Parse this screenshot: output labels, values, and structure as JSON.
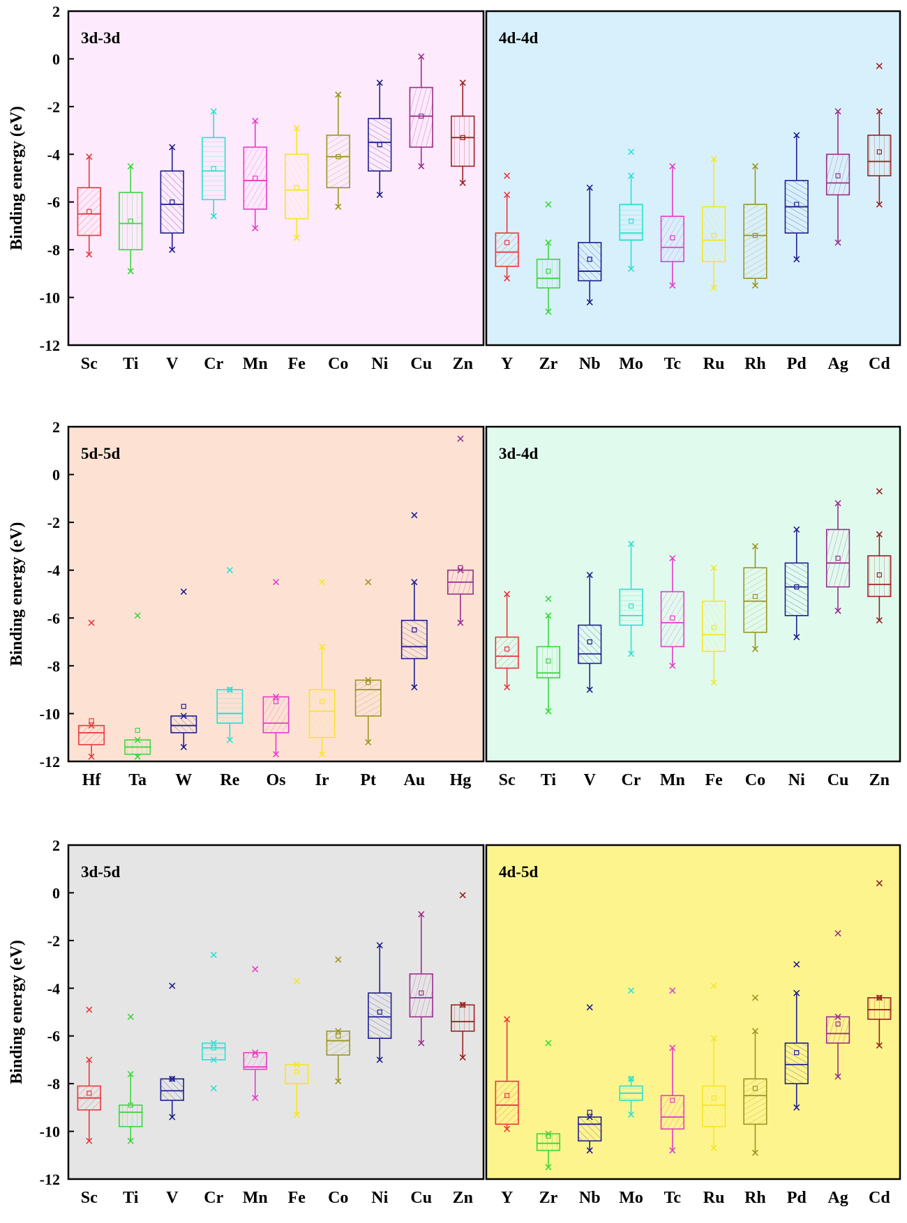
{
  "chart_data": [
    {
      "type": "box",
      "title": "3d-3d",
      "ylabel": "Binding energy (eV)",
      "ylim": [
        -12,
        2
      ],
      "yticks": [
        2,
        0,
        -2,
        -4,
        -6,
        -8,
        -10,
        -12
      ],
      "background": "#fdeafc",
      "categories": [
        "Sc",
        "Ti",
        "V",
        "Cr",
        "Mn",
        "Fe",
        "Co",
        "Ni",
        "Cu",
        "Zn"
      ],
      "colors": [
        "#e8383d",
        "#3cd63c",
        "#1e1e8c",
        "#2ee0d0",
        "#e63cc8",
        "#f5e626",
        "#9a9620",
        "#1e1e8c",
        "#9a2e8c",
        "#9a2020"
      ],
      "boxes": [
        {
          "min": -8.2,
          "q1": -7.4,
          "median": -6.5,
          "q3": -5.4,
          "max": -4.1,
          "mean": -6.4
        },
        {
          "min": -8.9,
          "q1": -8.0,
          "median": -6.9,
          "q3": -5.6,
          "max": -4.5,
          "mean": -6.8
        },
        {
          "min": -8.0,
          "q1": -7.3,
          "median": -6.1,
          "q3": -4.7,
          "max": -3.7,
          "mean": -6.0
        },
        {
          "min": -6.6,
          "q1": -5.9,
          "median": -4.7,
          "q3": -3.3,
          "max": -2.2,
          "mean": -4.6
        },
        {
          "min": -7.1,
          "q1": -6.3,
          "median": -5.1,
          "q3": -3.7,
          "max": -2.6,
          "mean": -5.0
        },
        {
          "min": -7.5,
          "q1": -6.7,
          "median": -5.5,
          "q3": -4.0,
          "max": -2.9,
          "mean": -5.4
        },
        {
          "min": -6.2,
          "q1": -5.4,
          "median": -4.1,
          "q3": -3.2,
          "max": -1.5,
          "mean": -4.1
        },
        {
          "min": -5.7,
          "q1": -4.7,
          "median": -3.5,
          "q3": -2.5,
          "max": -1.0,
          "mean": -3.6
        },
        {
          "min": -4.5,
          "q1": -3.7,
          "median": -2.4,
          "q3": -1.2,
          "max": 0.1,
          "mean": -2.4
        },
        {
          "min": -5.2,
          "q1": -4.5,
          "median": -3.3,
          "q3": -2.4,
          "max": -1.0,
          "mean": -3.3
        }
      ],
      "outliers": []
    },
    {
      "type": "box",
      "title": "4d-4d",
      "ylabel": "",
      "ylim": [
        -12,
        2
      ],
      "yticks": [],
      "background": "#d8f0fb",
      "categories": [
        "Y",
        "Zr",
        "Nb",
        "Mo",
        "Tc",
        "Ru",
        "Rh",
        "Pd",
        "Ag",
        "Cd"
      ],
      "colors": [
        "#e8383d",
        "#3cd63c",
        "#1e1e8c",
        "#2ee0d0",
        "#e63cc8",
        "#f5e626",
        "#9a9620",
        "#1e1e8c",
        "#9a2e8c",
        "#9a2020"
      ],
      "boxes": [
        {
          "min": -9.2,
          "q1": -8.7,
          "median": -8.1,
          "q3": -7.3,
          "max": -5.7,
          "mean": -7.7
        },
        {
          "min": -10.6,
          "q1": -9.6,
          "median": -9.2,
          "q3": -8.4,
          "max": -7.7,
          "mean": -8.9
        },
        {
          "min": -10.2,
          "q1": -9.3,
          "median": -8.9,
          "q3": -7.7,
          "max": -5.4,
          "mean": -8.4
        },
        {
          "min": -8.8,
          "q1": -7.6,
          "median": -7.3,
          "q3": -6.1,
          "max": -4.9,
          "mean": -6.8
        },
        {
          "min": -9.5,
          "q1": -8.5,
          "median": -7.9,
          "q3": -6.6,
          "max": -4.5,
          "mean": -7.5
        },
        {
          "min": -9.6,
          "q1": -8.5,
          "median": -7.6,
          "q3": -6.2,
          "max": -4.2,
          "mean": -7.4
        },
        {
          "min": -9.5,
          "q1": -9.2,
          "median": -7.4,
          "q3": -6.1,
          "max": -4.5,
          "mean": -7.4
        },
        {
          "min": -8.4,
          "q1": -7.3,
          "median": -6.2,
          "q3": -5.1,
          "max": -3.2,
          "mean": -6.1
        },
        {
          "min": -7.7,
          "q1": -5.7,
          "median": -5.2,
          "q3": -4.0,
          "max": -2.2,
          "mean": -4.9
        },
        {
          "min": -6.1,
          "q1": -4.9,
          "median": -4.3,
          "q3": -3.2,
          "max": -2.2,
          "mean": -3.9
        }
      ],
      "outliers": [
        {
          "category": "Y",
          "value": -4.9
        },
        {
          "category": "Zr",
          "value": -6.1
        },
        {
          "category": "Mo",
          "value": -3.9
        },
        {
          "category": "Cd",
          "value": -0.3
        }
      ]
    },
    {
      "type": "box",
      "title": "5d-5d",
      "ylabel": "Binding energy (eV)",
      "ylim": [
        -12,
        2
      ],
      "yticks": [
        2,
        0,
        -2,
        -4,
        -6,
        -8,
        -10,
        -12
      ],
      "background": "#fde2d4",
      "categories": [
        "Hf",
        "Ta",
        "W",
        "Re",
        "Os",
        "Ir",
        "Pt",
        "Au",
        "Hg"
      ],
      "colors": [
        "#e8383d",
        "#3cd63c",
        "#1e1e8c",
        "#2ee0d0",
        "#e63cc8",
        "#f5e626",
        "#9a9620",
        "#1e1e8c",
        "#9a2e8c"
      ],
      "boxes": [
        {
          "min": -11.8,
          "q1": -11.3,
          "median": -10.8,
          "q3": -10.5,
          "max": -10.5,
          "mean": -10.3
        },
        {
          "min": -11.8,
          "q1": -11.7,
          "median": -11.4,
          "q3": -11.1,
          "max": -11.1,
          "mean": -10.7
        },
        {
          "min": -11.4,
          "q1": -10.8,
          "median": -10.5,
          "q3": -10.1,
          "max": -10.1,
          "mean": -9.7
        },
        {
          "min": -11.1,
          "q1": -10.4,
          "median": -10.0,
          "q3": -9.0,
          "max": -9.0,
          "mean": -9.0
        },
        {
          "min": -11.7,
          "q1": -10.8,
          "median": -10.4,
          "q3": -9.3,
          "max": -9.3,
          "mean": -9.5
        },
        {
          "min": -11.7,
          "q1": -11.0,
          "median": -9.9,
          "q3": -9.0,
          "max": -7.2,
          "mean": -9.5
        },
        {
          "min": -11.2,
          "q1": -10.1,
          "median": -9.0,
          "q3": -8.6,
          "max": -8.6,
          "mean": -8.7
        },
        {
          "min": -8.9,
          "q1": -7.7,
          "median": -7.2,
          "q3": -6.1,
          "max": -4.5,
          "mean": -6.5
        },
        {
          "min": -6.2,
          "q1": -5.0,
          "median": -4.5,
          "q3": -4.0,
          "max": -4.0,
          "mean": -3.9
        }
      ],
      "outliers": [
        {
          "category": "Hf",
          "value": -6.2
        },
        {
          "category": "Ta",
          "value": -5.9
        },
        {
          "category": "W",
          "value": -4.9
        },
        {
          "category": "Re",
          "value": -4.0
        },
        {
          "category": "Os",
          "value": -4.5
        },
        {
          "category": "Ir",
          "value": -4.5
        },
        {
          "category": "Pt",
          "value": -4.5
        },
        {
          "category": "Au",
          "value": -1.7
        },
        {
          "category": "Hg",
          "value": 1.5
        }
      ]
    },
    {
      "type": "box",
      "title": "3d-4d",
      "ylabel": "",
      "ylim": [
        -12,
        2
      ],
      "yticks": [],
      "background": "#e0fbee",
      "categories": [
        "Sc",
        "Ti",
        "V",
        "Cr",
        "Mn",
        "Fe",
        "Co",
        "Ni",
        "Cu",
        "Zn"
      ],
      "colors": [
        "#e8383d",
        "#3cd63c",
        "#1e1e8c",
        "#2ee0d0",
        "#e63cc8",
        "#f5e626",
        "#9a9620",
        "#1e1e8c",
        "#9a2e8c",
        "#9a2020"
      ],
      "boxes": [
        {
          "min": -8.9,
          "q1": -8.1,
          "median": -7.6,
          "q3": -6.8,
          "max": -5.0,
          "mean": -7.3
        },
        {
          "min": -9.9,
          "q1": -8.5,
          "median": -8.3,
          "q3": -7.2,
          "max": -5.9,
          "mean": -7.8
        },
        {
          "min": -9.0,
          "q1": -7.9,
          "median": -7.5,
          "q3": -6.3,
          "max": -4.2,
          "mean": -7.0
        },
        {
          "min": -7.5,
          "q1": -6.3,
          "median": -5.9,
          "q3": -4.8,
          "max": -2.9,
          "mean": -5.5
        },
        {
          "min": -8.0,
          "q1": -7.2,
          "median": -6.2,
          "q3": -4.9,
          "max": -3.5,
          "mean": -6.0
        },
        {
          "min": -8.7,
          "q1": -7.4,
          "median": -6.7,
          "q3": -5.3,
          "max": -3.9,
          "mean": -6.4
        },
        {
          "min": -7.3,
          "q1": -6.6,
          "median": -5.3,
          "q3": -3.9,
          "max": -3.0,
          "mean": -5.1
        },
        {
          "min": -6.8,
          "q1": -5.9,
          "median": -4.7,
          "q3": -3.7,
          "max": -2.3,
          "mean": -4.7
        },
        {
          "min": -5.7,
          "q1": -4.7,
          "median": -3.7,
          "q3": -2.3,
          "max": -1.2,
          "mean": -3.5
        },
        {
          "min": -6.1,
          "q1": -5.1,
          "median": -4.6,
          "q3": -3.4,
          "max": -2.5,
          "mean": -4.2
        }
      ],
      "outliers": [
        {
          "category": "Ti",
          "value": -5.2
        },
        {
          "category": "Zn",
          "value": -0.7
        }
      ]
    },
    {
      "type": "box",
      "title": "3d-5d",
      "ylabel": "Binding energy (eV)",
      "ylim": [
        -12,
        2
      ],
      "yticks": [
        2,
        0,
        -2,
        -4,
        -6,
        -8,
        -10,
        -12
      ],
      "background": "#e5e5e5",
      "categories": [
        "Sc",
        "Ti",
        "V",
        "Cr",
        "Mn",
        "Fe",
        "Co",
        "Ni",
        "Cu",
        "Zn"
      ],
      "colors": [
        "#e8383d",
        "#3cd63c",
        "#1e1e8c",
        "#2ee0d0",
        "#e63cc8",
        "#f5e626",
        "#9a9620",
        "#1e1e8c",
        "#9a2e8c",
        "#9a2020"
      ],
      "boxes": [
        {
          "min": -10.4,
          "q1": -9.1,
          "median": -8.6,
          "q3": -8.1,
          "max": -7.0,
          "mean": -8.4
        },
        {
          "min": -10.4,
          "q1": -9.8,
          "median": -9.2,
          "q3": -8.9,
          "max": -7.6,
          "mean": -8.9
        },
        {
          "min": -9.4,
          "q1": -8.7,
          "median": -8.3,
          "q3": -7.8,
          "max": -7.8,
          "mean": -7.8
        },
        {
          "min": -7.0,
          "q1": -7.0,
          "median": -6.5,
          "q3": -6.3,
          "max": -6.3,
          "mean": -6.5
        },
        {
          "min": -8.6,
          "q1": -7.4,
          "median": -7.3,
          "q3": -6.7,
          "max": -6.7,
          "mean": -6.8
        },
        {
          "min": -9.3,
          "q1": -8.0,
          "median": -8.0,
          "q3": -7.2,
          "max": -7.2,
          "mean": -7.5
        },
        {
          "min": -7.9,
          "q1": -6.8,
          "median": -6.2,
          "q3": -5.8,
          "max": -5.8,
          "mean": -6.0
        },
        {
          "min": -7.0,
          "q1": -6.1,
          "median": -5.2,
          "q3": -4.2,
          "max": -2.2,
          "mean": -5.0
        },
        {
          "min": -6.3,
          "q1": -5.2,
          "median": -4.4,
          "q3": -3.4,
          "max": -0.9,
          "mean": -4.2
        },
        {
          "min": -6.9,
          "q1": -5.8,
          "median": -5.4,
          "q3": -4.7,
          "max": -4.7,
          "mean": -4.7
        }
      ],
      "outliers": [
        {
          "category": "Sc",
          "value": -4.9
        },
        {
          "category": "Ti",
          "value": -5.2
        },
        {
          "category": "V",
          "value": -3.9
        },
        {
          "category": "Cr",
          "value": -2.6
        },
        {
          "category": "Cr",
          "value": -8.2
        },
        {
          "category": "Mn",
          "value": -3.2
        },
        {
          "category": "Fe",
          "value": -3.7
        },
        {
          "category": "Co",
          "value": -2.8
        },
        {
          "category": "Zn",
          "value": -0.1
        }
      ]
    },
    {
      "type": "box",
      "title": "4d-5d",
      "ylabel": "",
      "ylim": [
        -12,
        2
      ],
      "yticks": [],
      "background": "#fdf48e",
      "categories": [
        "Y",
        "Zr",
        "Nb",
        "Mo",
        "Tc",
        "Ru",
        "Rh",
        "Pd",
        "Ag",
        "Cd"
      ],
      "colors": [
        "#e8383d",
        "#3cd63c",
        "#1e1e8c",
        "#2ee0d0",
        "#e63cc8",
        "#f5e626",
        "#9a9620",
        "#1e1e8c",
        "#9a2e8c",
        "#9a2020"
      ],
      "boxes": [
        {
          "min": -9.9,
          "q1": -9.7,
          "median": -8.9,
          "q3": -7.9,
          "max": -5.3,
          "mean": -8.5
        },
        {
          "min": -11.5,
          "q1": -10.8,
          "median": -10.5,
          "q3": -10.1,
          "max": -10.1,
          "mean": -10.2
        },
        {
          "min": -10.8,
          "q1": -10.4,
          "median": -9.7,
          "q3": -9.4,
          "max": -9.4,
          "mean": -9.2
        },
        {
          "min": -9.3,
          "q1": -8.7,
          "median": -8.4,
          "q3": -8.1,
          "max": -7.8,
          "mean": -7.8
        },
        {
          "min": -10.8,
          "q1": -9.9,
          "median": -9.4,
          "q3": -8.5,
          "max": -6.5,
          "mean": -8.7
        },
        {
          "min": -10.7,
          "q1": -9.8,
          "median": -8.9,
          "q3": -8.1,
          "max": -6.1,
          "mean": -8.6
        },
        {
          "min": -10.9,
          "q1": -9.7,
          "median": -8.5,
          "q3": -7.8,
          "max": -5.8,
          "mean": -8.2
        },
        {
          "min": -9.0,
          "q1": -8.0,
          "median": -7.2,
          "q3": -6.3,
          "max": -4.2,
          "mean": -6.7
        },
        {
          "min": -7.7,
          "q1": -6.3,
          "median": -5.9,
          "q3": -5.2,
          "max": -5.2,
          "mean": -5.5
        },
        {
          "min": -6.4,
          "q1": -5.3,
          "median": -4.9,
          "q3": -4.4,
          "max": -4.4,
          "mean": -4.4
        }
      ],
      "outliers": [
        {
          "category": "Zr",
          "value": -6.3
        },
        {
          "category": "Nb",
          "value": -4.8
        },
        {
          "category": "Mo",
          "value": -4.1
        },
        {
          "category": "Tc",
          "value": -4.1
        },
        {
          "category": "Ru",
          "value": -3.9
        },
        {
          "category": "Rh",
          "value": -4.4
        },
        {
          "category": "Pd",
          "value": -3.0
        },
        {
          "category": "Ag",
          "value": -1.7
        },
        {
          "category": "Cd",
          "value": 0.4
        }
      ]
    }
  ]
}
